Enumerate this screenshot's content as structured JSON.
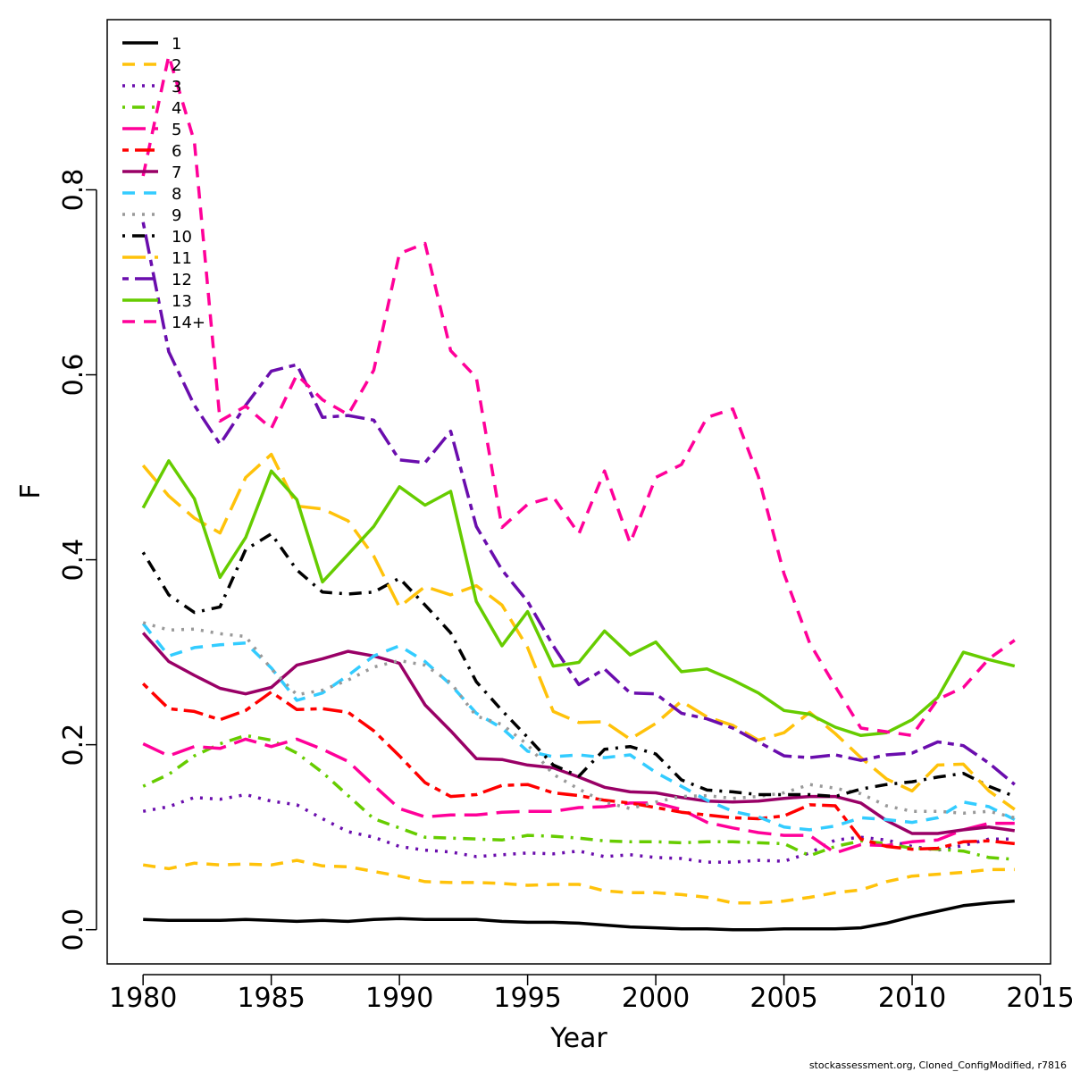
{
  "chart_data": {
    "type": "line",
    "xlabel": "Year",
    "ylabel": "F",
    "xlim": [
      1978.6,
      2015.4
    ],
    "ylim": [
      -0.037,
      0.984
    ],
    "xticks": [
      1980,
      1985,
      1990,
      1995,
      2000,
      2005,
      2010,
      2015
    ],
    "yticks": [
      0.0,
      0.2,
      0.4,
      0.6,
      0.8
    ],
    "ytick_labels": [
      "0.0",
      "0.2",
      "0.4",
      "0.6",
      "0.8"
    ],
    "legend_position": "top-left",
    "grid": false,
    "footer": "stockassessment.org, Cloned_ConfigModified, r7816",
    "x": [
      1980,
      1981,
      1982,
      1983,
      1984,
      1985,
      1986,
      1987,
      1988,
      1989,
      1990,
      1991,
      1992,
      1993,
      1994,
      1995,
      1996,
      1997,
      1998,
      1999,
      2000,
      2001,
      2002,
      2003,
      2004,
      2005,
      2006,
      2007,
      2008,
      2009,
      2010,
      2011,
      2012,
      2013,
      2014
    ],
    "series": [
      {
        "name": "1",
        "color": "#000000",
        "dash": "solid",
        "values": [
          0.011,
          0.01,
          0.01,
          0.01,
          0.011,
          0.01,
          0.009,
          0.01,
          0.009,
          0.011,
          0.012,
          0.011,
          0.011,
          0.011,
          0.009,
          0.008,
          0.008,
          0.007,
          0.005,
          0.003,
          0.002,
          0.001,
          0.001,
          0.0,
          0.0,
          0.001,
          0.001,
          0.001,
          0.002,
          0.007,
          0.014,
          0.02,
          0.026,
          0.029,
          0.031
        ]
      },
      {
        "name": "2",
        "color": "#FFC20A",
        "dash": "dashed",
        "values": [
          0.07,
          0.066,
          0.072,
          0.07,
          0.071,
          0.07,
          0.075,
          0.069,
          0.068,
          0.063,
          0.058,
          0.052,
          0.051,
          0.051,
          0.05,
          0.048,
          0.049,
          0.049,
          0.042,
          0.04,
          0.04,
          0.038,
          0.035,
          0.029,
          0.029,
          0.031,
          0.035,
          0.04,
          0.043,
          0.052,
          0.058,
          0.06,
          0.062,
          0.065,
          0.065
        ]
      },
      {
        "name": "3",
        "color": "#6A0DAD",
        "dash": "dotted",
        "values": [
          0.128,
          0.133,
          0.143,
          0.141,
          0.146,
          0.139,
          0.135,
          0.12,
          0.106,
          0.1,
          0.09,
          0.086,
          0.084,
          0.079,
          0.081,
          0.083,
          0.082,
          0.085,
          0.079,
          0.081,
          0.078,
          0.077,
          0.073,
          0.073,
          0.075,
          0.074,
          0.083,
          0.097,
          0.1,
          0.097,
          0.09,
          0.086,
          0.091,
          0.098,
          0.098
        ]
      },
      {
        "name": "4",
        "color": "#66CC00",
        "dash": "dotdash",
        "values": [
          0.155,
          0.168,
          0.188,
          0.201,
          0.21,
          0.205,
          0.191,
          0.17,
          0.145,
          0.12,
          0.11,
          0.1,
          0.099,
          0.098,
          0.097,
          0.102,
          0.101,
          0.099,
          0.096,
          0.095,
          0.095,
          0.094,
          0.095,
          0.095,
          0.094,
          0.093,
          0.08,
          0.09,
          0.096,
          0.093,
          0.088,
          0.087,
          0.085,
          0.078,
          0.076
        ]
      },
      {
        "name": "5",
        "color": "#FF0099",
        "dash": "longdash",
        "values": [
          0.201,
          0.188,
          0.198,
          0.196,
          0.206,
          0.198,
          0.206,
          0.195,
          0.182,
          0.156,
          0.131,
          0.122,
          0.124,
          0.124,
          0.127,
          0.128,
          0.128,
          0.132,
          0.133,
          0.137,
          0.137,
          0.13,
          0.116,
          0.11,
          0.105,
          0.102,
          0.102,
          0.083,
          0.092,
          0.091,
          0.095,
          0.097,
          0.108,
          0.115,
          0.115
        ]
      },
      {
        "name": "6",
        "color": "#FF0000",
        "dash": "twodash",
        "values": [
          0.266,
          0.239,
          0.236,
          0.227,
          0.237,
          0.257,
          0.238,
          0.239,
          0.235,
          0.215,
          0.188,
          0.159,
          0.144,
          0.146,
          0.156,
          0.157,
          0.148,
          0.145,
          0.14,
          0.137,
          0.132,
          0.127,
          0.124,
          0.121,
          0.12,
          0.123,
          0.135,
          0.134,
          0.098,
          0.09,
          0.087,
          0.088,
          0.095,
          0.096,
          0.093
        ]
      },
      {
        "name": "7",
        "color": "#990066",
        "dash": "solid",
        "values": [
          0.321,
          0.29,
          0.275,
          0.261,
          0.255,
          0.262,
          0.286,
          0.293,
          0.301,
          0.296,
          0.288,
          0.243,
          0.215,
          0.185,
          0.184,
          0.178,
          0.175,
          0.165,
          0.154,
          0.149,
          0.148,
          0.143,
          0.139,
          0.138,
          0.139,
          0.142,
          0.144,
          0.144,
          0.137,
          0.118,
          0.104,
          0.104,
          0.108,
          0.111,
          0.107
        ]
      },
      {
        "name": "8",
        "color": "#33CCFF",
        "dash": "dashed",
        "values": [
          0.331,
          0.296,
          0.305,
          0.308,
          0.31,
          0.283,
          0.248,
          0.256,
          0.275,
          0.296,
          0.307,
          0.29,
          0.265,
          0.234,
          0.218,
          0.193,
          0.187,
          0.189,
          0.186,
          0.189,
          0.17,
          0.155,
          0.14,
          0.128,
          0.122,
          0.111,
          0.108,
          0.112,
          0.121,
          0.119,
          0.116,
          0.121,
          0.138,
          0.133,
          0.119
        ]
      },
      {
        "name": "9",
        "color": "#999999",
        "dash": "dotted",
        "values": [
          0.332,
          0.324,
          0.325,
          0.32,
          0.317,
          0.282,
          0.254,
          0.259,
          0.27,
          0.284,
          0.291,
          0.286,
          0.267,
          0.231,
          0.222,
          0.2,
          0.168,
          0.152,
          0.138,
          0.131,
          0.138,
          0.144,
          0.145,
          0.142,
          0.144,
          0.148,
          0.157,
          0.153,
          0.147,
          0.134,
          0.128,
          0.128,
          0.126,
          0.128,
          0.121
        ]
      },
      {
        "name": "10",
        "color": "#000000",
        "dash": "dotdash",
        "values": [
          0.408,
          0.362,
          0.343,
          0.349,
          0.411,
          0.428,
          0.389,
          0.365,
          0.363,
          0.365,
          0.38,
          0.351,
          0.321,
          0.268,
          0.237,
          0.208,
          0.178,
          0.166,
          0.195,
          0.198,
          0.19,
          0.162,
          0.151,
          0.149,
          0.146,
          0.146,
          0.146,
          0.144,
          0.152,
          0.157,
          0.16,
          0.165,
          0.169,
          0.155,
          0.144
        ]
      },
      {
        "name": "11",
        "color": "#FFC20A",
        "dash": "longdash",
        "values": [
          0.502,
          0.469,
          0.445,
          0.429,
          0.489,
          0.514,
          0.458,
          0.455,
          0.442,
          0.404,
          0.349,
          0.371,
          0.362,
          0.372,
          0.351,
          0.305,
          0.236,
          0.224,
          0.225,
          0.206,
          0.223,
          0.247,
          0.23,
          0.221,
          0.205,
          0.213,
          0.235,
          0.212,
          0.186,
          0.163,
          0.15,
          0.178,
          0.179,
          0.15,
          0.13
        ]
      },
      {
        "name": "12",
        "color": "#6A0DAD",
        "dash": "twodash",
        "values": [
          0.765,
          0.625,
          0.567,
          0.525,
          0.567,
          0.604,
          0.611,
          0.554,
          0.556,
          0.551,
          0.508,
          0.505,
          0.539,
          0.436,
          0.389,
          0.355,
          0.307,
          0.265,
          0.282,
          0.256,
          0.255,
          0.234,
          0.228,
          0.218,
          0.203,
          0.188,
          0.186,
          0.189,
          0.183,
          0.189,
          0.191,
          0.203,
          0.199,
          0.18,
          0.157
        ]
      },
      {
        "name": "13",
        "color": "#66CC00",
        "dash": "solid",
        "values": [
          0.456,
          0.507,
          0.466,
          0.381,
          0.424,
          0.496,
          0.465,
          0.376,
          0.406,
          0.436,
          0.479,
          0.459,
          0.474,
          0.355,
          0.307,
          0.344,
          0.285,
          0.289,
          0.323,
          0.297,
          0.311,
          0.279,
          0.282,
          0.27,
          0.256,
          0.237,
          0.233,
          0.219,
          0.21,
          0.213,
          0.227,
          0.251,
          0.3,
          0.292,
          0.285
        ]
      },
      {
        "name": "14+",
        "color": "#FF0099",
        "dash": "dashed",
        "values": [
          0.815,
          0.945,
          0.852,
          0.55,
          0.566,
          0.542,
          0.6,
          0.573,
          0.557,
          0.605,
          0.731,
          0.742,
          0.626,
          0.597,
          0.435,
          0.46,
          0.468,
          0.428,
          0.496,
          0.418,
          0.489,
          0.503,
          0.554,
          0.563,
          0.49,
          0.385,
          0.31,
          0.263,
          0.218,
          0.214,
          0.21,
          0.249,
          0.262,
          0.293,
          0.313
        ]
      }
    ]
  }
}
